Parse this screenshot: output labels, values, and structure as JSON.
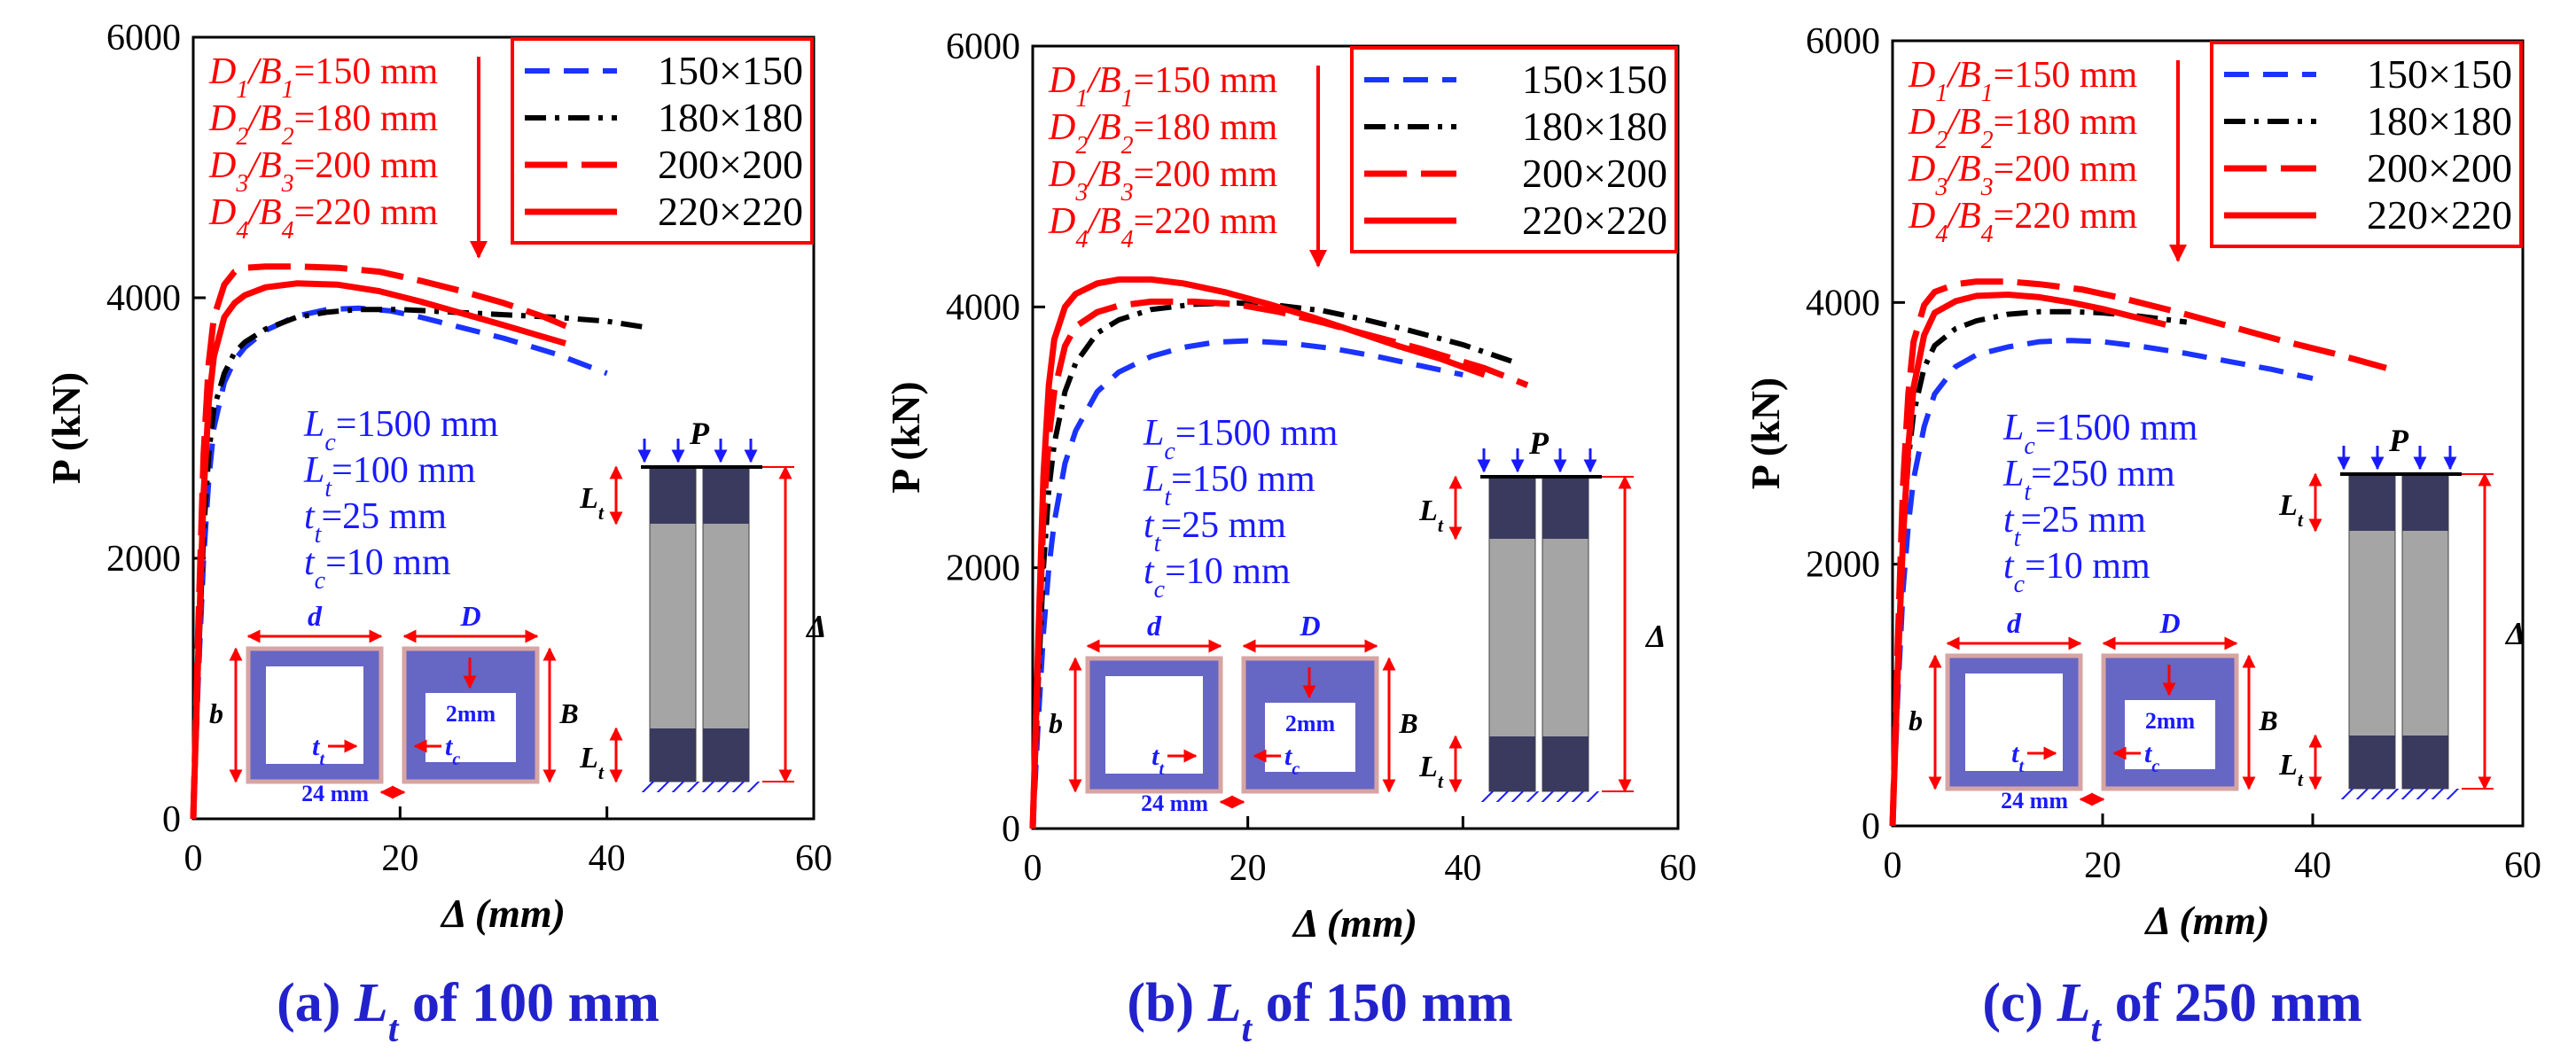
{
  "chart_data": [
    {
      "type": "line",
      "panel": "(a)",
      "caption_prefix": "(a) ",
      "caption_suffix": " of 100 mm",
      "xlabel": "Δ (mm)",
      "ylabel": "P (kN)",
      "xlim": [
        0,
        60
      ],
      "ylim": [
        0,
        6000
      ],
      "xticks": [
        "0",
        "20",
        "40",
        "60"
      ],
      "yticks": [
        "0",
        "2000",
        "4000",
        "6000"
      ],
      "legend": [
        "150×150",
        "180×180",
        "200×200",
        "220×220"
      ],
      "annotations": {
        "dims": [
          [
            "D",
            "1",
            "B",
            "1",
            "=150 mm"
          ],
          [
            "D",
            "2",
            "B",
            "2",
            "=180 mm"
          ],
          [
            "D",
            "3",
            "B",
            "3",
            "=200 mm"
          ],
          [
            "D",
            "4",
            "B",
            "4",
            "=220 mm"
          ]
        ],
        "params": [
          [
            "L",
            "c",
            "=1500 mm"
          ],
          [
            "L",
            "t",
            "=100 mm"
          ],
          [
            "t",
            "t",
            "=25 mm"
          ],
          [
            "t",
            "c",
            "=10 mm"
          ]
        ]
      },
      "series": [
        {
          "name": "150×150",
          "x": [
            0,
            0.5,
            1,
            1.5,
            2,
            3,
            4,
            5,
            7,
            10,
            13,
            16,
            19,
            22,
            26,
            30,
            35,
            40
          ],
          "y": [
            0,
            1100,
            2000,
            2600,
            3000,
            3350,
            3520,
            3620,
            3750,
            3860,
            3910,
            3920,
            3900,
            3850,
            3770,
            3690,
            3570,
            3420
          ]
        },
        {
          "name": "180×180",
          "x": [
            0,
            0.5,
            1,
            1.5,
            2,
            3,
            4,
            5,
            7,
            10,
            13,
            16,
            20,
            25,
            30,
            35,
            40,
            44
          ],
          "y": [
            0,
            1200,
            2200,
            2800,
            3150,
            3420,
            3580,
            3660,
            3760,
            3850,
            3890,
            3910,
            3910,
            3890,
            3870,
            3850,
            3820,
            3770
          ]
        },
        {
          "name": "200×200",
          "x": [
            0,
            0.5,
            1,
            1.5,
            2,
            3,
            4,
            5,
            7,
            10,
            14,
            18,
            22,
            26,
            30,
            34,
            37
          ],
          "y": [
            0,
            1500,
            2800,
            3500,
            3850,
            4100,
            4200,
            4230,
            4240,
            4240,
            4230,
            4200,
            4130,
            4050,
            3960,
            3850,
            3750
          ]
        },
        {
          "name": "220×220",
          "x": [
            0,
            0.5,
            1,
            1.5,
            2,
            3,
            4,
            5,
            7,
            10,
            14,
            18,
            22,
            26,
            30,
            33,
            36
          ],
          "y": [
            0,
            1300,
            2500,
            3200,
            3550,
            3850,
            3960,
            4020,
            4080,
            4110,
            4100,
            4050,
            3970,
            3880,
            3790,
            3720,
            3650
          ]
        }
      ]
    },
    {
      "type": "line",
      "panel": "(b)",
      "caption_prefix": "(b) ",
      "caption_suffix": " of 150 mm",
      "xlabel": "Δ (mm)",
      "ylabel": "P (kN)",
      "xlim": [
        0,
        60
      ],
      "ylim": [
        0,
        6000
      ],
      "xticks": [
        "0",
        "20",
        "40",
        "60"
      ],
      "yticks": [
        "0",
        "2000",
        "4000",
        "6000"
      ],
      "legend": [
        "150×150",
        "180×180",
        "200×200",
        "220×220"
      ],
      "annotations": {
        "dims": [
          [
            "D",
            "1",
            "B",
            "1",
            "=150 mm"
          ],
          [
            "D",
            "2",
            "B",
            "2",
            "=180 mm"
          ],
          [
            "D",
            "3",
            "B",
            "3",
            "=200 mm"
          ],
          [
            "D",
            "4",
            "B",
            "4",
            "=220 mm"
          ]
        ],
        "params": [
          [
            "L",
            "c",
            "=1500 mm"
          ],
          [
            "L",
            "t",
            "=150 mm"
          ],
          [
            "t",
            "t",
            "=25 mm"
          ],
          [
            "t",
            "c",
            "=10 mm"
          ]
        ]
      },
      "series": [
        {
          "name": "150×150",
          "x": [
            0,
            0.5,
            1,
            1.5,
            2,
            3,
            4,
            6,
            8,
            11,
            14,
            17,
            20,
            24,
            28,
            32,
            36,
            40
          ],
          "y": [
            0,
            800,
            1500,
            2000,
            2350,
            2800,
            3050,
            3350,
            3500,
            3620,
            3690,
            3730,
            3740,
            3720,
            3680,
            3620,
            3550,
            3480
          ]
        },
        {
          "name": "180×180",
          "x": [
            0,
            0.5,
            1,
            1.5,
            2,
            3,
            4,
            6,
            8,
            11,
            15,
            19,
            23,
            27,
            31,
            35,
            40,
            45
          ],
          "y": [
            0,
            1100,
            2000,
            2600,
            2950,
            3350,
            3570,
            3800,
            3900,
            3980,
            4020,
            4030,
            4010,
            3970,
            3900,
            3820,
            3710,
            3570
          ]
        },
        {
          "name": "200×200",
          "x": [
            0,
            0.5,
            1,
            1.5,
            2,
            3,
            4,
            6,
            8,
            11,
            15,
            19,
            23,
            27,
            31,
            36,
            42,
            46
          ],
          "y": [
            0,
            1300,
            2400,
            3000,
            3350,
            3700,
            3850,
            3960,
            4010,
            4040,
            4040,
            4020,
            3960,
            3880,
            3790,
            3680,
            3530,
            3400
          ]
        },
        {
          "name": "220×220",
          "x": [
            0,
            0.5,
            1,
            1.5,
            2,
            3,
            4,
            6,
            8,
            11,
            14,
            18,
            22,
            26,
            30,
            34,
            38,
            42
          ],
          "y": [
            0,
            1400,
            2700,
            3400,
            3750,
            4000,
            4100,
            4180,
            4210,
            4210,
            4180,
            4110,
            4020,
            3920,
            3810,
            3700,
            3600,
            3480
          ]
        }
      ]
    },
    {
      "type": "line",
      "panel": "(c)",
      "caption_prefix": "(c) ",
      "caption_suffix": " of 250 mm",
      "xlabel": "Δ (mm)",
      "ylabel": "P (kN)",
      "xlim": [
        0,
        60
      ],
      "ylim": [
        0,
        6000
      ],
      "xticks": [
        "0",
        "20",
        "40",
        "60"
      ],
      "yticks": [
        "0",
        "2000",
        "4000",
        "6000"
      ],
      "legend": [
        "150×150",
        "180×180",
        "200×200",
        "220×220"
      ],
      "annotations": {
        "dims": [
          [
            "D",
            "1",
            "B",
            "1",
            "=150 mm"
          ],
          [
            "D",
            "2",
            "B",
            "2",
            "=180 mm"
          ],
          [
            "D",
            "3",
            "B",
            "3",
            "=200 mm"
          ],
          [
            "D",
            "4",
            "B",
            "4",
            "=220 mm"
          ]
        ],
        "params": [
          [
            "L",
            "c",
            "=1500 mm"
          ],
          [
            "L",
            "t",
            "=250 mm"
          ],
          [
            "t",
            "t",
            "=25 mm"
          ],
          [
            "t",
            "c",
            "=10 mm"
          ]
        ]
      },
      "series": [
        {
          "name": "150×150",
          "x": [
            0,
            0.5,
            1,
            1.5,
            2,
            3,
            4,
            6,
            8,
            11,
            14,
            17,
            20,
            24,
            28,
            32,
            36,
            40
          ],
          "y": [
            0,
            1000,
            1800,
            2300,
            2650,
            3050,
            3300,
            3510,
            3600,
            3660,
            3700,
            3710,
            3700,
            3660,
            3610,
            3550,
            3490,
            3420
          ]
        },
        {
          "name": "180×180",
          "x": [
            0,
            0.5,
            1,
            1.5,
            2,
            3,
            4,
            6,
            8,
            11,
            14,
            17,
            20,
            23,
            26,
            28
          ],
          "y": [
            0,
            1200,
            2200,
            2800,
            3150,
            3500,
            3670,
            3800,
            3860,
            3910,
            3930,
            3930,
            3920,
            3900,
            3870,
            3850
          ]
        },
        {
          "name": "200×200",
          "x": [
            0,
            0.5,
            1,
            1.5,
            2,
            3,
            4,
            6,
            8,
            11,
            14,
            18,
            22,
            27,
            32,
            37,
            42,
            47
          ],
          "y": [
            0,
            1400,
            2600,
            3300,
            3700,
            3980,
            4080,
            4140,
            4160,
            4160,
            4140,
            4100,
            4030,
            3930,
            3820,
            3710,
            3610,
            3500
          ]
        },
        {
          "name": "220×220",
          "x": [
            0,
            0.5,
            1,
            1.5,
            2,
            3,
            4,
            6,
            8,
            11,
            14,
            17,
            20,
            23,
            26
          ],
          "y": [
            0,
            1200,
            2200,
            2900,
            3350,
            3750,
            3920,
            4010,
            4050,
            4060,
            4040,
            4000,
            3950,
            3890,
            3830
          ]
        }
      ]
    }
  ],
  "schematic": {
    "load": "P",
    "lt": [
      "L",
      "t"
    ],
    "delta": "Δ",
    "d": "d",
    "D": "D",
    "b": "b",
    "B": "B",
    "tt": [
      "t",
      "t"
    ],
    "tc": [
      "t",
      "c"
    ],
    "gap": "2mm",
    "width": "24 mm"
  },
  "colors": {
    "s150": "#1a33ff",
    "s180": "#000000",
    "s200": "#ff0000",
    "s220": "#ff0000",
    "annot_red": "#ff0000",
    "annot_blue": "#1a1aff",
    "caption": "#2222cc",
    "tube": "#6666c4",
    "tube_frame": "#d7a4a4",
    "steel_dark": "#3a3a5e",
    "concrete": "#a5a5a5"
  }
}
